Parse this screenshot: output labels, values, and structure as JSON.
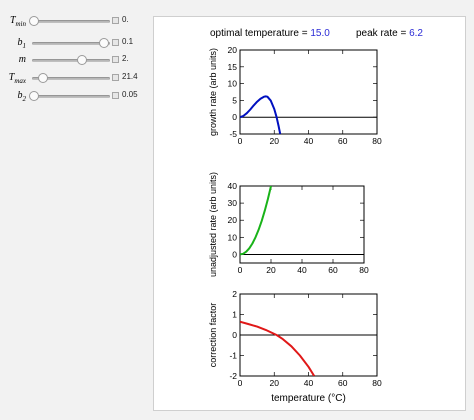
{
  "controls": [
    {
      "id": "tmin",
      "label": "T",
      "sub": "min",
      "value": "0.",
      "fraction": 0.03
    },
    {
      "id": "b1",
      "label": "b",
      "sub": "1",
      "value": "0.1",
      "fraction": 0.92
    },
    {
      "id": "m",
      "label": "m",
      "sub": "",
      "value": "2.",
      "fraction": 0.64
    },
    {
      "id": "tmax",
      "label": "T",
      "sub": "max",
      "value": "21.4",
      "fraction": 0.14
    },
    {
      "id": "b2",
      "label": "b",
      "sub": "2",
      "value": "0.05",
      "fraction": 0.03
    }
  ],
  "header": {
    "opt_label": "optimal temperature =",
    "opt_value": "15.0",
    "peak_label": "peak rate =",
    "peak_value": "6.2"
  },
  "colors": {
    "value_text": "#2b2bd6",
    "growth": "#0010c0",
    "unadjusted": "#19b319",
    "correction": "#e01818"
  },
  "chart_data": [
    {
      "type": "line",
      "ylabel": "growth rate (arb units)",
      "xlabel": "",
      "xlim": [
        0,
        80
      ],
      "ylim": [
        -5,
        20
      ],
      "xticks": [
        0,
        20,
        40,
        60,
        80
      ],
      "yticks": [
        -5,
        0,
        5,
        10,
        15,
        20
      ],
      "baseline": 0,
      "series": [
        {
          "color": "#0010c0",
          "x": [
            0,
            2,
            4,
            6,
            8,
            10,
            12,
            14,
            15,
            16,
            18,
            20,
            21.4,
            22.5,
            23.5
          ],
          "y": [
            0,
            0.4,
            1.2,
            2.3,
            3.5,
            4.6,
            5.5,
            6.1,
            6.2,
            6.1,
            4.9,
            2.4,
            0,
            -2.5,
            -5
          ]
        }
      ]
    },
    {
      "type": "line",
      "ylabel": "unadjusted rate (arb units)",
      "xlabel": "",
      "xlim": [
        0,
        80
      ],
      "ylim": [
        -5,
        40
      ],
      "xticks": [
        0,
        20,
        40,
        60,
        80
      ],
      "yticks": [
        0,
        10,
        20,
        30,
        40
      ],
      "baseline": 0,
      "series": [
        {
          "color": "#19b319",
          "x": [
            0,
            2,
            4,
            6,
            8,
            10,
            12,
            14,
            16,
            18,
            20
          ],
          "y": [
            0,
            0.4,
            1.6,
            3.6,
            6.4,
            10,
            14.4,
            19.6,
            25.6,
            32.4,
            40
          ]
        }
      ]
    },
    {
      "type": "line",
      "ylabel": "correction factor",
      "xlabel": "temperature (°C)",
      "xlim": [
        0,
        80
      ],
      "ylim": [
        -2,
        2
      ],
      "xticks": [
        0,
        20,
        40,
        60,
        80
      ],
      "yticks": [
        -2,
        -1,
        0,
        1,
        2
      ],
      "baseline": 0,
      "series": [
        {
          "color": "#e01818",
          "x": [
            0,
            5,
            10,
            15,
            21.4,
            25,
            30,
            35,
            40,
            43.3
          ],
          "y": [
            0.65,
            0.53,
            0.41,
            0.25,
            0,
            -0.2,
            -0.55,
            -1.0,
            -1.55,
            -2
          ]
        }
      ]
    }
  ]
}
